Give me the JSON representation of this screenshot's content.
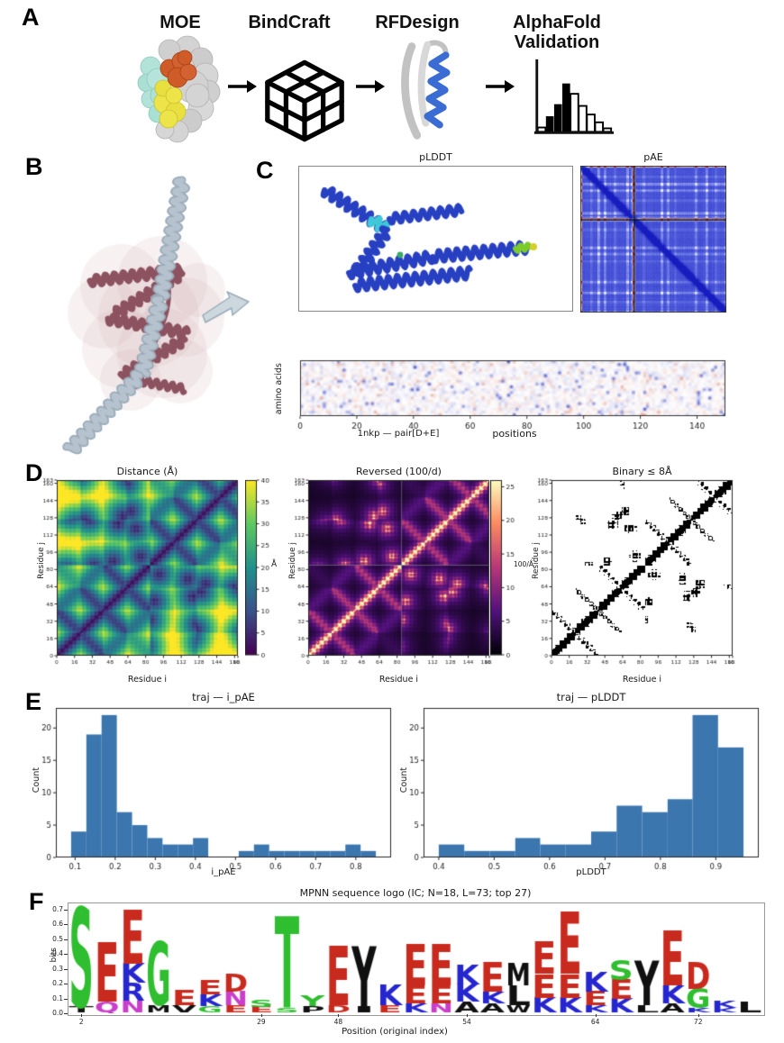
{
  "panels": {
    "a": {
      "label": "A",
      "steps": [
        {
          "title": "MOE",
          "icon": "protein-surface-icon"
        },
        {
          "title": "BindCraft",
          "icon": "lattice-cube-icon"
        },
        {
          "title": "RFDesign",
          "icon": "protein-ribbon-icon"
        },
        {
          "title": "AlphaFold Validation",
          "icon": "histogram-icon"
        }
      ]
    },
    "b": {
      "label": "B"
    },
    "c": {
      "label": "C",
      "plddt_title": "pLDDT",
      "pae_title": "pAE"
    },
    "d": {
      "label": "D"
    },
    "e": {
      "label": "E"
    },
    "f": {
      "label": "F"
    }
  },
  "colors": {
    "histogram_bar": "#3b76af",
    "plddt_ribbon_blue": "#2740c2",
    "plddt_low_confidence_cyan": "#3fc8d8",
    "plddt_tip_green": "#7ccb2d",
    "binder_ribbon_gray": "#b6c3cf",
    "target_ribbon_rose": "#8d5260"
  },
  "chart_data": [
    {
      "id": "pae_matrix",
      "type": "heatmap",
      "title": "pAE",
      "n": 162,
      "chain_break_fraction": 0.365,
      "colormap": "blue-white-red"
    },
    {
      "id": "aa_position_heatmap",
      "type": "heatmap",
      "caption": "1nkp — pair[D+E]",
      "xlabel": "positions",
      "ylabel": "amino acids",
      "rows": 20,
      "cols": 150,
      "xticks": [
        0,
        20,
        40,
        60,
        80,
        100,
        120,
        140
      ],
      "colormap": "blue-white-red"
    },
    {
      "id": "distance_matrix",
      "type": "heatmap",
      "title": "Distance (Å)",
      "xlabel": "Residue i",
      "ylabel": "Residue j",
      "n": 163,
      "boundary": 84,
      "ticks": [
        0,
        16,
        32,
        48,
        64,
        80,
        96,
        112,
        128,
        144,
        160,
        163
      ],
      "colormap": "viridis",
      "vmin": 0,
      "vmax": 40,
      "colorbar": {
        "ticks": [
          0,
          5,
          10,
          15,
          20,
          25,
          30,
          35,
          40
        ],
        "label": "Å"
      }
    },
    {
      "id": "reversed_matrix",
      "type": "heatmap",
      "title": "Reversed (100/d)",
      "xlabel": "Residue i",
      "ylabel": "Residue j",
      "n": 163,
      "boundary": 84,
      "ticks": [
        0,
        16,
        32,
        48,
        64,
        80,
        96,
        112,
        128,
        144,
        160,
        163
      ],
      "colormap": "magma",
      "vmin": 0,
      "vmax": 26,
      "colorbar": {
        "ticks": [
          0,
          5,
          10,
          15,
          20,
          25
        ],
        "label": "100/Å"
      }
    },
    {
      "id": "binary_contact_map",
      "type": "heatmap",
      "title": "Binary ≤ 8Å",
      "xlabel": "Residue i",
      "ylabel": "Residue j",
      "n": 163,
      "boundary": 84,
      "threshold_angstrom": 8,
      "ticks": [
        0,
        16,
        32,
        48,
        64,
        80,
        96,
        112,
        128,
        144,
        160,
        163
      ]
    },
    {
      "id": "hist_i_pae",
      "type": "bar",
      "title": "traj — i_pAE",
      "xlabel": "i_pAE",
      "ylabel": "Count",
      "bin_edges": [
        0.09,
        0.128,
        0.166,
        0.204,
        0.242,
        0.28,
        0.318,
        0.356,
        0.394,
        0.432,
        0.47,
        0.508,
        0.546,
        0.584,
        0.622,
        0.66,
        0.698,
        0.736,
        0.774,
        0.812,
        0.85
      ],
      "counts": [
        4,
        19,
        22,
        7,
        5,
        3,
        2,
        2,
        3,
        0,
        0,
        1,
        2,
        1,
        1,
        1,
        1,
        1,
        2,
        1
      ],
      "xticks": [
        0.1,
        0.2,
        0.3,
        0.4,
        0.5,
        0.6,
        0.7,
        0.8
      ],
      "yticks": [
        0,
        5,
        10,
        15,
        20
      ],
      "ymax": 23.1,
      "bar_color": "#3b76af"
    },
    {
      "id": "hist_plddt",
      "type": "bar",
      "title": "traj — pLDDT",
      "xlabel": "pLDDT",
      "ylabel": "Count",
      "bin_edges": [
        0.4,
        0.446,
        0.492,
        0.538,
        0.583,
        0.629,
        0.675,
        0.721,
        0.767,
        0.813,
        0.858,
        0.904,
        0.95
      ],
      "counts": [
        2,
        1,
        1,
        3,
        2,
        2,
        4,
        8,
        7,
        9,
        22,
        17
      ],
      "xticks": [
        0.4,
        0.5,
        0.6,
        0.7,
        0.8,
        0.9
      ],
      "yticks": [
        0,
        5,
        10,
        15,
        20
      ],
      "ymax": 23.1,
      "bar_color": "#3b76af"
    },
    {
      "id": "sequence_logo",
      "type": "logo",
      "title": "MPNN sequence logo (IC; N=18, L=73; top 27)",
      "xlabel": "Position (original index)",
      "ylabel": "bits",
      "yticks": [
        "0.0",
        "0.1",
        "0.2",
        "0.3",
        "0.4",
        "0.5",
        "0.6",
        "0.7"
      ],
      "ymax": 0.73,
      "xticks": [
        {
          "col": 1,
          "label": "2"
        },
        {
          "col": 8,
          "label": "29"
        },
        {
          "col": 11,
          "label": "48"
        },
        {
          "col": 16,
          "label": "54"
        },
        {
          "col": 21,
          "label": "64"
        },
        {
          "col": 25,
          "label": "72"
        }
      ],
      "letter_colors": {
        "green": "#2fbe2f",
        "red": "#c92a1e",
        "blue": "#2626cf",
        "black": "#101010",
        "magenta": "#c93fc9"
      },
      "columns": [
        [
          {
            "ch": "S",
            "h": 0.67,
            "c": "green"
          },
          {
            "ch": "T",
            "h": 0.035,
            "c": "black"
          }
        ],
        [
          {
            "ch": "E",
            "h": 0.4,
            "c": "red"
          },
          {
            "ch": "Q",
            "h": 0.07,
            "c": "magenta"
          }
        ],
        [
          {
            "ch": "E",
            "h": 0.36,
            "c": "red"
          },
          {
            "ch": "K",
            "h": 0.13,
            "c": "blue"
          },
          {
            "ch": "R",
            "h": 0.12,
            "c": "blue"
          },
          {
            "ch": "N",
            "h": 0.08,
            "c": "magenta"
          }
        ],
        [
          {
            "ch": "G",
            "h": 0.43,
            "c": "green"
          },
          {
            "ch": "M",
            "h": 0.05,
            "c": "black"
          }
        ],
        [
          {
            "ch": "E",
            "h": 0.1,
            "c": "red"
          },
          {
            "ch": "V",
            "h": 0.05,
            "c": "black"
          }
        ],
        [
          {
            "ch": "E",
            "h": 0.09,
            "c": "red"
          },
          {
            "ch": "K",
            "h": 0.08,
            "c": "blue"
          },
          {
            "ch": "G",
            "h": 0.04,
            "c": "green"
          }
        ],
        [
          {
            "ch": "D",
            "h": 0.12,
            "c": "red"
          },
          {
            "ch": "N",
            "h": 0.09,
            "c": "magenta"
          },
          {
            "ch": "E",
            "h": 0.05,
            "c": "red"
          }
        ],
        [
          {
            "ch": "S",
            "h": 0.045,
            "c": "green"
          },
          {
            "ch": "E",
            "h": 0.035,
            "c": "red"
          }
        ],
        [
          {
            "ch": "T",
            "h": 0.62,
            "c": "green"
          },
          {
            "ch": "S",
            "h": 0.03,
            "c": "green"
          }
        ],
        [
          {
            "ch": "Y",
            "h": 0.07,
            "c": "green"
          },
          {
            "ch": "P",
            "h": 0.04,
            "c": "black"
          }
        ],
        [
          {
            "ch": "E",
            "h": 0.4,
            "c": "red"
          },
          {
            "ch": "D",
            "h": 0.05,
            "c": "red"
          }
        ],
        [
          {
            "ch": "Y",
            "h": 0.4,
            "c": "black"
          },
          {
            "ch": "I",
            "h": 0.04,
            "c": "black"
          }
        ],
        [
          {
            "ch": "K",
            "h": 0.14,
            "c": "blue"
          },
          {
            "ch": "E",
            "h": 0.05,
            "c": "red"
          }
        ],
        [
          {
            "ch": "E",
            "h": 0.28,
            "c": "red"
          },
          {
            "ch": "E",
            "h": 0.12,
            "c": "red"
          },
          {
            "ch": "K",
            "h": 0.06,
            "c": "blue"
          }
        ],
        [
          {
            "ch": "E",
            "h": 0.28,
            "c": "red"
          },
          {
            "ch": "E",
            "h": 0.12,
            "c": "red"
          },
          {
            "ch": "N",
            "h": 0.06,
            "c": "magenta"
          }
        ],
        [
          {
            "ch": "K",
            "h": 0.13,
            "c": "blue"
          },
          {
            "ch": "K",
            "h": 0.12,
            "c": "blue"
          },
          {
            "ch": "A",
            "h": 0.07,
            "c": "black"
          }
        ],
        [
          {
            "ch": "E",
            "h": 0.2,
            "c": "red"
          },
          {
            "ch": "K",
            "h": 0.08,
            "c": "blue"
          },
          {
            "ch": "A",
            "h": 0.06,
            "c": "black"
          }
        ],
        [
          {
            "ch": "M",
            "h": 0.15,
            "c": "black"
          },
          {
            "ch": "L",
            "h": 0.13,
            "c": "black"
          },
          {
            "ch": "W",
            "h": 0.05,
            "c": "black"
          }
        ],
        [
          {
            "ch": "E",
            "h": 0.22,
            "c": "red"
          },
          {
            "ch": "E",
            "h": 0.16,
            "c": "red"
          },
          {
            "ch": "K",
            "h": 0.1,
            "c": "blue"
          }
        ],
        [
          {
            "ch": "E",
            "h": 0.42,
            "c": "red"
          },
          {
            "ch": "E",
            "h": 0.16,
            "c": "red"
          },
          {
            "ch": "K",
            "h": 0.1,
            "c": "blue"
          }
        ],
        [
          {
            "ch": "K",
            "h": 0.13,
            "c": "blue"
          },
          {
            "ch": "E",
            "h": 0.09,
            "c": "red"
          },
          {
            "ch": "K",
            "h": 0.05,
            "c": "blue"
          }
        ],
        [
          {
            "ch": "S",
            "h": 0.13,
            "c": "green"
          },
          {
            "ch": "E",
            "h": 0.13,
            "c": "red"
          },
          {
            "ch": "K",
            "h": 0.09,
            "c": "blue"
          }
        ],
        [
          {
            "ch": "Y",
            "h": 0.3,
            "c": "black"
          },
          {
            "ch": "L",
            "h": 0.05,
            "c": "black"
          }
        ],
        [
          {
            "ch": "E",
            "h": 0.37,
            "c": "red"
          },
          {
            "ch": "K",
            "h": 0.12,
            "c": "blue"
          },
          {
            "ch": "A",
            "h": 0.06,
            "c": "black"
          }
        ],
        [
          {
            "ch": "D",
            "h": 0.18,
            "c": "red"
          },
          {
            "ch": "G",
            "h": 0.13,
            "c": "green"
          },
          {
            "ch": "K",
            "h": 0.03,
            "c": "blue"
          }
        ],
        [
          {
            "ch": "K",
            "h": 0.05,
            "c": "blue"
          },
          {
            "ch": "K",
            "h": 0.03,
            "c": "blue"
          }
        ],
        [
          {
            "ch": "L",
            "h": 0.07,
            "c": "black"
          }
        ]
      ]
    }
  ]
}
